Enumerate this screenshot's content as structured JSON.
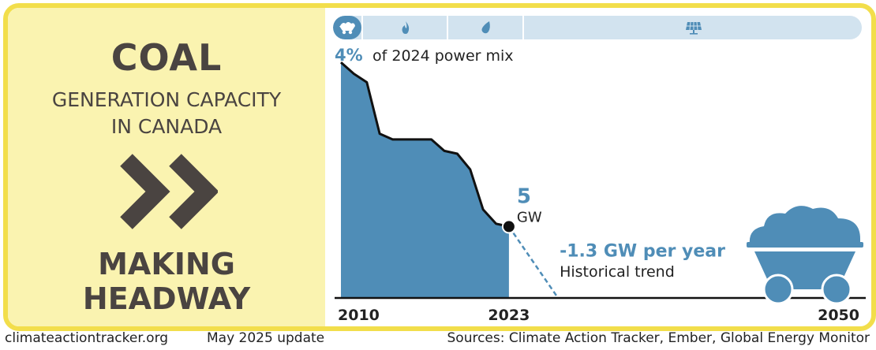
{
  "site": "climateactiontracker.org",
  "update": "May 2025 update",
  "sources": "Sources: Climate Action Tracker, Ember, Global Energy Monitor",
  "header": {
    "title": "COAL",
    "subtitle_lines": [
      "GENERATION CAPACITY",
      "IN CANADA"
    ],
    "rating_lines": [
      "MAKING",
      "HEADWAY"
    ]
  },
  "power_mix": {
    "share_pct": "4%",
    "label": "of 2024 power mix",
    "segments": [
      "coal-icon",
      "gas-flame-icon",
      "water-drop-icon",
      "solar-panel-icon"
    ]
  },
  "chart_data": {
    "type": "area",
    "title": "Coal generation capacity in Canada",
    "unit": "GW",
    "xlim": [
      2010,
      2050
    ],
    "ylim": [
      0,
      17
    ],
    "x_ticks": [
      "2010",
      "2023",
      "2050"
    ],
    "historical": [
      {
        "x": 2010,
        "y": 16.5
      },
      {
        "x": 2011,
        "y": 15.7
      },
      {
        "x": 2012,
        "y": 15.1
      },
      {
        "x": 2013,
        "y": 11.5
      },
      {
        "x": 2014,
        "y": 11.1
      },
      {
        "x": 2015,
        "y": 11.1
      },
      {
        "x": 2016,
        "y": 11.1
      },
      {
        "x": 2017,
        "y": 11.1
      },
      {
        "x": 2018,
        "y": 10.3
      },
      {
        "x": 2019,
        "y": 10.1
      },
      {
        "x": 2020,
        "y": 9.0
      },
      {
        "x": 2021,
        "y": 6.2
      },
      {
        "x": 2022,
        "y": 5.2
      },
      {
        "x": 2023,
        "y": 5.0
      }
    ],
    "trend": [
      {
        "x": 2023,
        "y": 5.0
      },
      {
        "x": 2026.8,
        "y": 0
      }
    ],
    "current_value": "5",
    "current_unit": "GW",
    "trend_label": "-1.3 GW per year",
    "trend_sublabel": "Historical trend",
    "colors": {
      "area": "#4f8db7",
      "line": "#111111",
      "accent": "#4f8db7"
    }
  }
}
